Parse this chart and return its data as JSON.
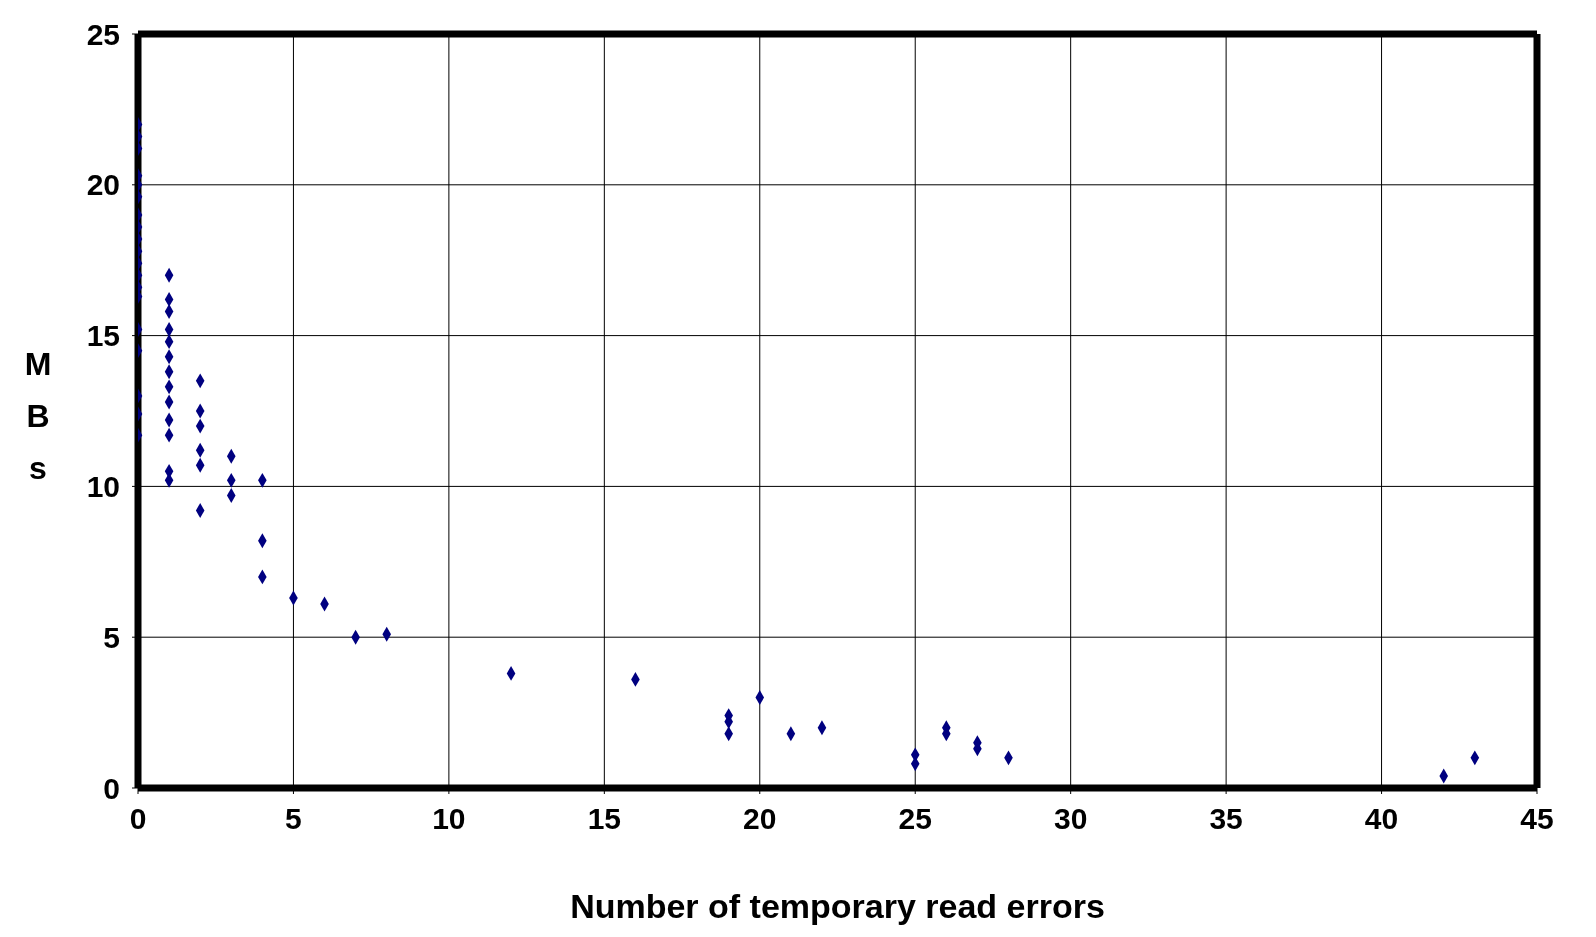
{
  "chart_data": {
    "type": "scatter",
    "xlabel": "Number of temporary read errors",
    "ylabel": "MBs",
    "series": [
      {
        "color": "#000080",
        "x": [
          0,
          0,
          0,
          0,
          0,
          0,
          0,
          0,
          0,
          0,
          0,
          0,
          0,
          0,
          0,
          0,
          0,
          0,
          0,
          1,
          1,
          1,
          1,
          1,
          1,
          1,
          1,
          1,
          1,
          1,
          1,
          1,
          2,
          2,
          2,
          2,
          2,
          2,
          3,
          3,
          3,
          4,
          4,
          4,
          5,
          6,
          7,
          8,
          12,
          16,
          19,
          19,
          19,
          20,
          21,
          22,
          25,
          25,
          26,
          26,
          27,
          27,
          28,
          42,
          43
        ],
        "values": [
          22,
          21.6,
          21.2,
          20.3,
          20,
          19.6,
          19,
          18.6,
          18.2,
          17.8,
          17.4,
          17,
          16.6,
          16.3,
          15.2,
          14.5,
          13,
          12.4,
          11.7,
          17,
          16.2,
          15.8,
          15.2,
          14.8,
          14.3,
          13.8,
          13.3,
          12.8,
          12.2,
          11.7,
          10.5,
          10.2,
          13.5,
          12.5,
          12,
          11.2,
          10.7,
          9.2,
          11,
          10.2,
          9.7,
          10.2,
          8.2,
          7,
          6.3,
          6.1,
          5,
          5.1,
          3.8,
          3.6,
          2.4,
          2.2,
          1.8,
          3,
          1.8,
          2,
          1.1,
          0.8,
          2,
          1.8,
          1.5,
          1.3,
          1,
          0.4,
          1
        ]
      }
    ],
    "xlim": [
      0,
      45
    ],
    "xticks": [
      0,
      5,
      10,
      15,
      20,
      25,
      30,
      35,
      40,
      45
    ],
    "ylim": [
      0,
      25
    ],
    "yticks": [
      0,
      5,
      10,
      15,
      20,
      25
    ],
    "grid": true,
    "marker": "diamond"
  }
}
